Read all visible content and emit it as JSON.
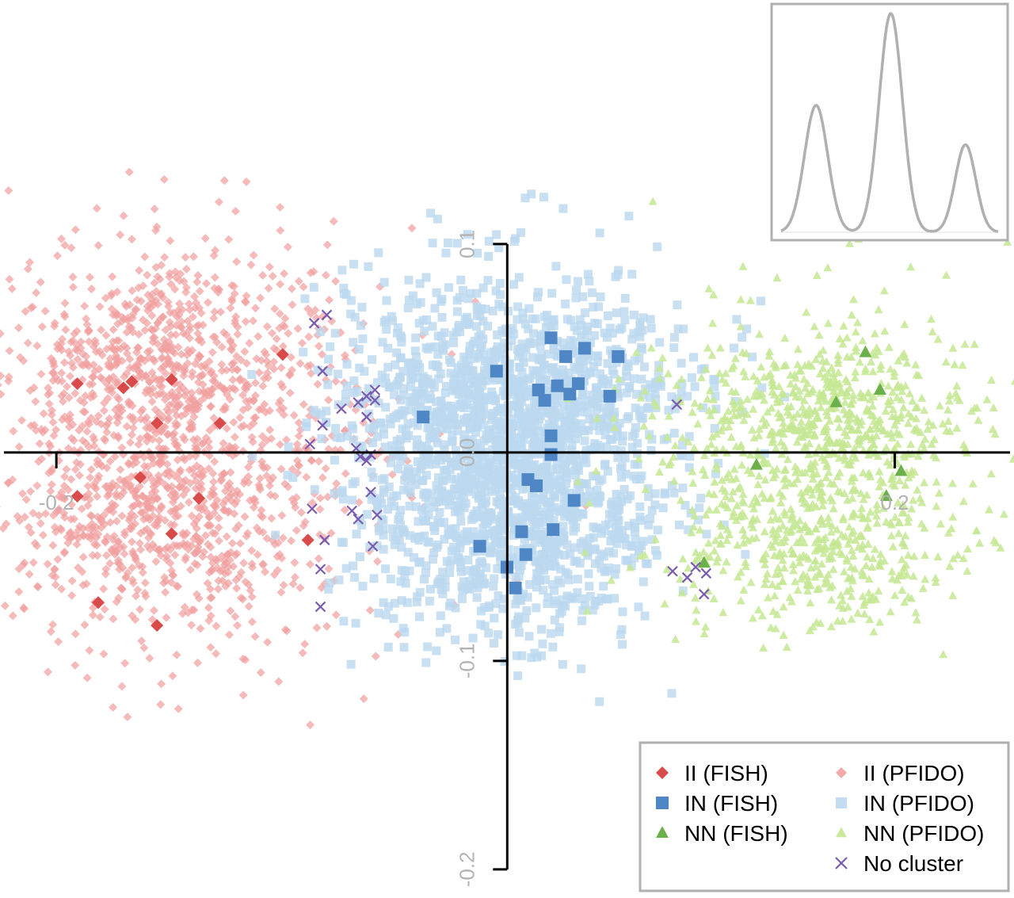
{
  "chart_data": {
    "type": "scatter",
    "title": "",
    "xlabel": "",
    "ylabel": "",
    "xlim": [
      -0.225,
      0.255
    ],
    "ylim": [
      -0.205,
      0.103
    ],
    "x_ticks": [
      {
        "value": -0.2,
        "label": "-0.2"
      },
      {
        "value": 0.2,
        "label": "0.2"
      }
    ],
    "y_ticks": [
      {
        "value": 0.1,
        "label": "0.1"
      },
      {
        "value": 0.0,
        "label": "0.0"
      },
      {
        "value": -0.1,
        "label": "-0.1"
      },
      {
        "value": -0.2,
        "label": "-0.2"
      }
    ],
    "grid": false,
    "legend_position": "bottom-right",
    "series": [
      {
        "name": "II (FISH)",
        "marker": "diamond",
        "color": "#d94b4b",
        "opacity": 1,
        "points": [
          [
            -0.19,
            0.033
          ],
          [
            -0.168,
            0.031
          ],
          [
            -0.164,
            0.034
          ],
          [
            -0.145,
            0.035
          ],
          [
            -0.152,
            0.014
          ],
          [
            -0.122,
            0.014
          ],
          [
            -0.092,
            0.047
          ],
          [
            -0.16,
            -0.012
          ],
          [
            -0.132,
            -0.022
          ],
          [
            -0.19,
            -0.021
          ],
          [
            -0.145,
            -0.039
          ],
          [
            -0.08,
            -0.042
          ],
          [
            -0.18,
            -0.072
          ],
          [
            -0.152,
            -0.083
          ]
        ]
      },
      {
        "name": "IN (FISH)",
        "marker": "square",
        "color": "#4f86c6",
        "opacity": 1,
        "points": [
          [
            0.036,
            0.055
          ],
          [
            0.052,
            0.05
          ],
          [
            0.043,
            0.046
          ],
          [
            0.068,
            0.046
          ],
          [
            0.01,
            0.039
          ],
          [
            0.03,
            0.03
          ],
          [
            0.039,
            0.032
          ],
          [
            0.049,
            0.033
          ],
          [
            0.033,
            0.025
          ],
          [
            0.045,
            0.028
          ],
          [
            0.064,
            0.027
          ],
          [
            -0.025,
            0.017
          ],
          [
            0.036,
            0.008
          ],
          [
            0.036,
            -0.001
          ],
          [
            0.025,
            -0.013
          ],
          [
            0.029,
            -0.016
          ],
          [
            0.047,
            -0.023
          ],
          [
            0.022,
            -0.038
          ],
          [
            0.037,
            -0.037
          ],
          [
            0.024,
            -0.049
          ],
          [
            0.002,
            -0.045
          ],
          [
            0.015,
            -0.055
          ],
          [
            0.019,
            -0.065
          ]
        ]
      },
      {
        "name": "NN (FISH)",
        "marker": "triangle",
        "color": "#6bb04a",
        "opacity": 1,
        "points": [
          [
            0.186,
            0.048
          ],
          [
            0.193,
            0.03
          ],
          [
            0.172,
            0.024
          ],
          [
            0.134,
            -0.006
          ],
          [
            0.203,
            -0.009
          ],
          [
            0.196,
            -0.021
          ],
          [
            0.109,
            -0.053
          ]
        ]
      },
      {
        "name": "II (PFIDO)",
        "marker": "diamond",
        "color": "#f1a0a0",
        "opacity": 0.72,
        "points": [],
        "clusters": [
          {
            "cx": -0.15,
            "cy": 0.038,
            "sx": 0.038,
            "sy": 0.028,
            "n": 680
          },
          {
            "cx": -0.15,
            "cy": -0.032,
            "sx": 0.038,
            "sy": 0.028,
            "n": 620
          },
          {
            "cx": -0.13,
            "cy": 0.005,
            "sx": 0.055,
            "sy": 0.05,
            "n": 380
          }
        ]
      },
      {
        "name": "IN (PFIDO)",
        "marker": "square",
        "color": "#bcd8ef",
        "opacity": 0.8,
        "points": [],
        "clusters": [
          {
            "cx": 0.01,
            "cy": 0.012,
            "sx": 0.04,
            "sy": 0.038,
            "n": 1100
          },
          {
            "cx": 0.02,
            "cy": -0.035,
            "sx": 0.035,
            "sy": 0.03,
            "n": 700
          },
          {
            "cx": 0.03,
            "cy": 0.03,
            "sx": 0.04,
            "sy": 0.022,
            "n": 400
          }
        ]
      },
      {
        "name": "NN (PFIDO)",
        "marker": "triangle",
        "color": "#c6e894",
        "opacity": 0.85,
        "points": [],
        "clusters": [
          {
            "cx": 0.172,
            "cy": 0.018,
            "sx": 0.032,
            "sy": 0.02,
            "n": 520
          },
          {
            "cx": 0.162,
            "cy": -0.045,
            "sx": 0.034,
            "sy": 0.02,
            "n": 420
          },
          {
            "cx": 0.15,
            "cy": 0.0,
            "sx": 0.045,
            "sy": 0.045,
            "n": 200
          }
        ]
      },
      {
        "name": "No cluster",
        "marker": "x",
        "color": "#7a5bb0",
        "opacity": 1,
        "points": [
          [
            -0.077,
            0.062
          ],
          [
            -0.071,
            0.066
          ],
          [
            -0.073,
            0.039
          ],
          [
            -0.064,
            0.021
          ],
          [
            -0.056,
            0.024
          ],
          [
            -0.052,
            0.027
          ],
          [
            -0.052,
            0.017
          ],
          [
            -0.048,
            0.025
          ],
          [
            -0.048,
            0.03
          ],
          [
            -0.073,
            0.013
          ],
          [
            -0.079,
            0.004
          ],
          [
            -0.057,
            0.002
          ],
          [
            -0.055,
            -0.002
          ],
          [
            -0.052,
            -0.004
          ],
          [
            -0.05,
            -0.001
          ],
          [
            -0.078,
            -0.027
          ],
          [
            -0.05,
            -0.019
          ],
          [
            -0.072,
            -0.042
          ],
          [
            -0.059,
            -0.028
          ],
          [
            -0.056,
            -0.032
          ],
          [
            -0.047,
            -0.03
          ],
          [
            -0.049,
            -0.045
          ],
          [
            -0.074,
            -0.056
          ],
          [
            -0.074,
            -0.074
          ],
          [
            0.096,
            0.023
          ],
          [
            0.094,
            -0.057
          ],
          [
            0.101,
            -0.06
          ],
          [
            0.105,
            -0.055
          ],
          [
            0.11,
            -0.058
          ],
          [
            0.109,
            -0.068
          ]
        ]
      }
    ]
  },
  "inset": {
    "description_curve": "density",
    "peaks": [
      {
        "mu": -0.16,
        "sigma": 0.025,
        "height": 0.58
      },
      {
        "mu": 0.0,
        "sigma": 0.025,
        "height": 1.0
      },
      {
        "mu": 0.16,
        "sigma": 0.022,
        "height": 0.4
      }
    ],
    "line_color": "#b0b0b0"
  },
  "legend": {
    "columns": [
      [
        "II (FISH)",
        "IN (FISH)",
        "NN (FISH)"
      ],
      [
        "II (PFIDO)",
        "IN (PFIDO)",
        "NN (PFIDO)",
        "No cluster"
      ]
    ]
  }
}
